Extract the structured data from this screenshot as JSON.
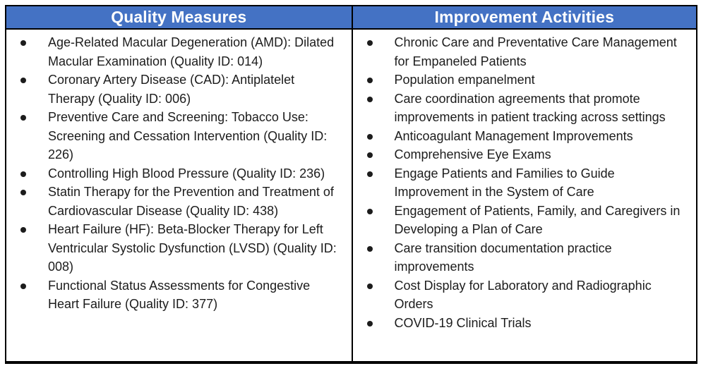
{
  "table": {
    "columns": [
      {
        "header": "Quality Measures",
        "items": [
          "Age-Related Macular Degeneration (AMD): Dilated Macular Examination (Quality ID: 014)",
          "Coronary Artery Disease (CAD): Antiplatelet Therapy (Quality ID: 006)",
          "Preventive Care and Screening: Tobacco Use: Screening and Cessation Intervention (Quality ID: 226)",
          "Controlling High Blood Pressure (Quality ID: 236)",
          "Statin Therapy for the Prevention and Treatment of Cardiovascular Disease (Quality ID: 438)",
          "Heart Failure (HF): Beta-Blocker Therapy for Left Ventricular Systolic Dysfunction (LVSD) (Quality ID: 008)",
          "Functional Status Assessments for Congestive Heart Failure (Quality ID: 377)"
        ]
      },
      {
        "header": "Improvement Activities",
        "items": [
          "Chronic Care and Preventative Care Management for Empaneled Patients",
          "Population empanelment",
          "Care coordination agreements that promote improvements in patient tracking across settings",
          "Anticoagulant Management Improvements",
          "Comprehensive Eye Exams",
          "Engage Patients and Families to Guide Improvement in the System of Care",
          "Engagement of Patients, Family, and Caregivers in Developing a Plan of Care",
          "Care transition documentation practice improvements",
          "Cost Display for Laboratory and Radiographic Orders",
          "COVID-19 Clinical Trials"
        ]
      }
    ]
  },
  "colors": {
    "header-bg": "#4472C4",
    "header-text": "#FFFFFF",
    "body-text": "#1C1C1C",
    "border": "#000000"
  }
}
